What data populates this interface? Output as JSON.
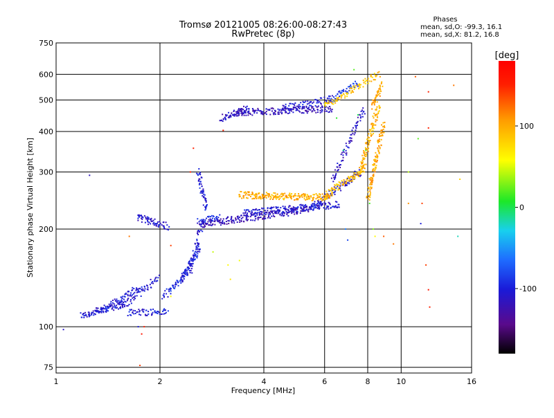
{
  "chart_data": {
    "type": "scatter",
    "title": "Tromsø 20121005 08:26:00-08:27:43",
    "subtitle": "RwPretec (8p)",
    "xlabel": "Frequency [MHz]",
    "ylabel": "Stationary phase Virtual Height [km]",
    "x_scale": "log",
    "y_scale": "log",
    "xlim": [
      1,
      16
    ],
    "ylim": [
      72,
      750
    ],
    "x_ticks": [
      1,
      2,
      4,
      6,
      8,
      10,
      16
    ],
    "x_tick_labels": [
      "1",
      "2",
      "4",
      "6",
      "8",
      "10",
      "16"
    ],
    "y_ticks": [
      75,
      100,
      200,
      300,
      400,
      500,
      600,
      750
    ],
    "y_tick_labels": [
      "75",
      "100",
      "200",
      "300",
      "400",
      "500",
      "600",
      "750"
    ],
    "grid": true,
    "stats": {
      "heading": "Phases",
      "line_o": "mean, sd,O: -99.3, 16.1",
      "line_x": "mean, sd,X:  81.2, 16.8"
    },
    "colorbar": {
      "label": "[deg]",
      "min": -180,
      "max": 180,
      "ticks": [
        100,
        0,
        -100
      ],
      "tick_labels": [
        "100",
        "0",
        "-100"
      ],
      "colormap": "rainbow"
    },
    "series": [
      {
        "traces": [
          {
            "x0": 1.18,
            "x1": 1.58,
            "y0": 108,
            "y1": 118,
            "phase": -105,
            "n": 45
          },
          {
            "x0": 1.3,
            "x1": 1.75,
            "y0": 110,
            "y1": 132,
            "phase": -102,
            "n": 40
          },
          {
            "x0": 1.55,
            "x1": 1.98,
            "y0": 115,
            "y1": 142,
            "phase": -108,
            "n": 30
          },
          {
            "x0": 1.62,
            "x1": 2.1,
            "y0": 111,
            "y1": 111,
            "phase": -100,
            "n": 30
          },
          {
            "x0": 2.05,
            "x1": 2.42,
            "y0": 124,
            "y1": 148,
            "phase": -95,
            "n": 26
          },
          {
            "x0": 2.3,
            "x1": 2.62,
            "y0": 138,
            "y1": 178,
            "phase": -98,
            "n": 38
          },
          {
            "x0": 2.45,
            "x1": 2.65,
            "y0": 150,
            "y1": 210,
            "phase": -104,
            "n": 22
          },
          {
            "x0": 1.72,
            "x1": 2.1,
            "y0": 218,
            "y1": 204,
            "phase": -108,
            "n": 34
          },
          {
            "x0": 2.58,
            "x1": 2.72,
            "y0": 300,
            "y1": 232,
            "phase": -102,
            "n": 26
          },
          {
            "x0": 2.6,
            "x1": 2.95,
            "y0": 210,
            "y1": 218,
            "phase": -95,
            "n": 18
          },
          {
            "x0": 2.62,
            "x1": 5.4,
            "y0": 207,
            "y1": 230,
            "phase": -120,
            "n": 120
          },
          {
            "x0": 3.5,
            "x1": 6.6,
            "y0": 224,
            "y1": 238,
            "phase": -104,
            "n": 90
          },
          {
            "x0": 5.5,
            "x1": 7.6,
            "y0": 232,
            "y1": 300,
            "phase": -108,
            "n": 55
          },
          {
            "x0": 6.3,
            "x1": 7.8,
            "y0": 280,
            "y1": 470,
            "phase": -112,
            "n": 40
          },
          {
            "x0": 3.0,
            "x1": 3.6,
            "y0": 440,
            "y1": 470,
            "phase": -112,
            "n": 30
          },
          {
            "x0": 3.3,
            "x1": 6.3,
            "y0": 458,
            "y1": 470,
            "phase": -116,
            "n": 90
          },
          {
            "x0": 4.5,
            "x1": 6.3,
            "y0": 470,
            "y1": 505,
            "phase": -105,
            "n": 40
          },
          {
            "x0": 6.2,
            "x1": 7.5,
            "y0": 500,
            "y1": 560,
            "phase": -90,
            "n": 25
          },
          {
            "x0": 3.4,
            "x1": 6.2,
            "y0": 255,
            "y1": 250,
            "phase": 98,
            "n": 110
          },
          {
            "x0": 6.0,
            "x1": 7.9,
            "y0": 252,
            "y1": 310,
            "phase": 92,
            "n": 50
          },
          {
            "x0": 7.6,
            "x1": 8.6,
            "y0": 300,
            "y1": 480,
            "phase": 96,
            "n": 55
          },
          {
            "x0": 8.0,
            "x1": 8.9,
            "y0": 250,
            "y1": 420,
            "phase": 102,
            "n": 60
          },
          {
            "x0": 6.0,
            "x1": 8.6,
            "y0": 480,
            "y1": 600,
            "phase": 88,
            "n": 45
          },
          {
            "x0": 8.3,
            "x1": 8.8,
            "y0": 480,
            "y1": 560,
            "phase": 104,
            "n": 20
          }
        ],
        "scatter_points": [
          [
            1.05,
            98,
            -110
          ],
          [
            1.25,
            293,
            -115
          ],
          [
            1.73,
            100,
            -100
          ],
          [
            1.75,
            76,
            140
          ],
          [
            1.77,
            95,
            160
          ],
          [
            1.8,
            100,
            150
          ],
          [
            1.63,
            190,
            120
          ],
          [
            2.15,
            178,
            140
          ],
          [
            2.15,
            124,
            60
          ],
          [
            2.45,
            300,
            150
          ],
          [
            2.5,
            355,
            150
          ],
          [
            2.85,
            170,
            45
          ],
          [
            3.05,
            403,
            150
          ],
          [
            3.15,
            155,
            60
          ],
          [
            3.2,
            140,
            70
          ],
          [
            3.4,
            160,
            55
          ],
          [
            6.5,
            440,
            10
          ],
          [
            6.8,
            350,
            -10
          ],
          [
            6.9,
            200,
            -60
          ],
          [
            7.0,
            185,
            -80
          ],
          [
            7.3,
            620,
            20
          ],
          [
            7.5,
            450,
            0
          ],
          [
            7.9,
            350,
            20
          ],
          [
            8.1,
            240,
            15
          ],
          [
            8.3,
            200,
            30
          ],
          [
            8.4,
            190,
            60
          ],
          [
            8.9,
            190,
            130
          ],
          [
            9.5,
            180,
            120
          ],
          [
            10.5,
            240,
            110
          ],
          [
            10.5,
            300,
            40
          ],
          [
            11.2,
            380,
            20
          ],
          [
            11.4,
            208,
            -100
          ],
          [
            11.5,
            240,
            140
          ],
          [
            11.8,
            155,
            140
          ],
          [
            12.0,
            530,
            150
          ],
          [
            12.0,
            410,
            150
          ],
          [
            12.0,
            130,
            160
          ],
          [
            12.1,
            115,
            150
          ],
          [
            14.2,
            555,
            120
          ],
          [
            14.8,
            285,
            80
          ],
          [
            14.6,
            190,
            -20
          ],
          [
            11.0,
            590,
            130
          ]
        ]
      }
    ]
  }
}
